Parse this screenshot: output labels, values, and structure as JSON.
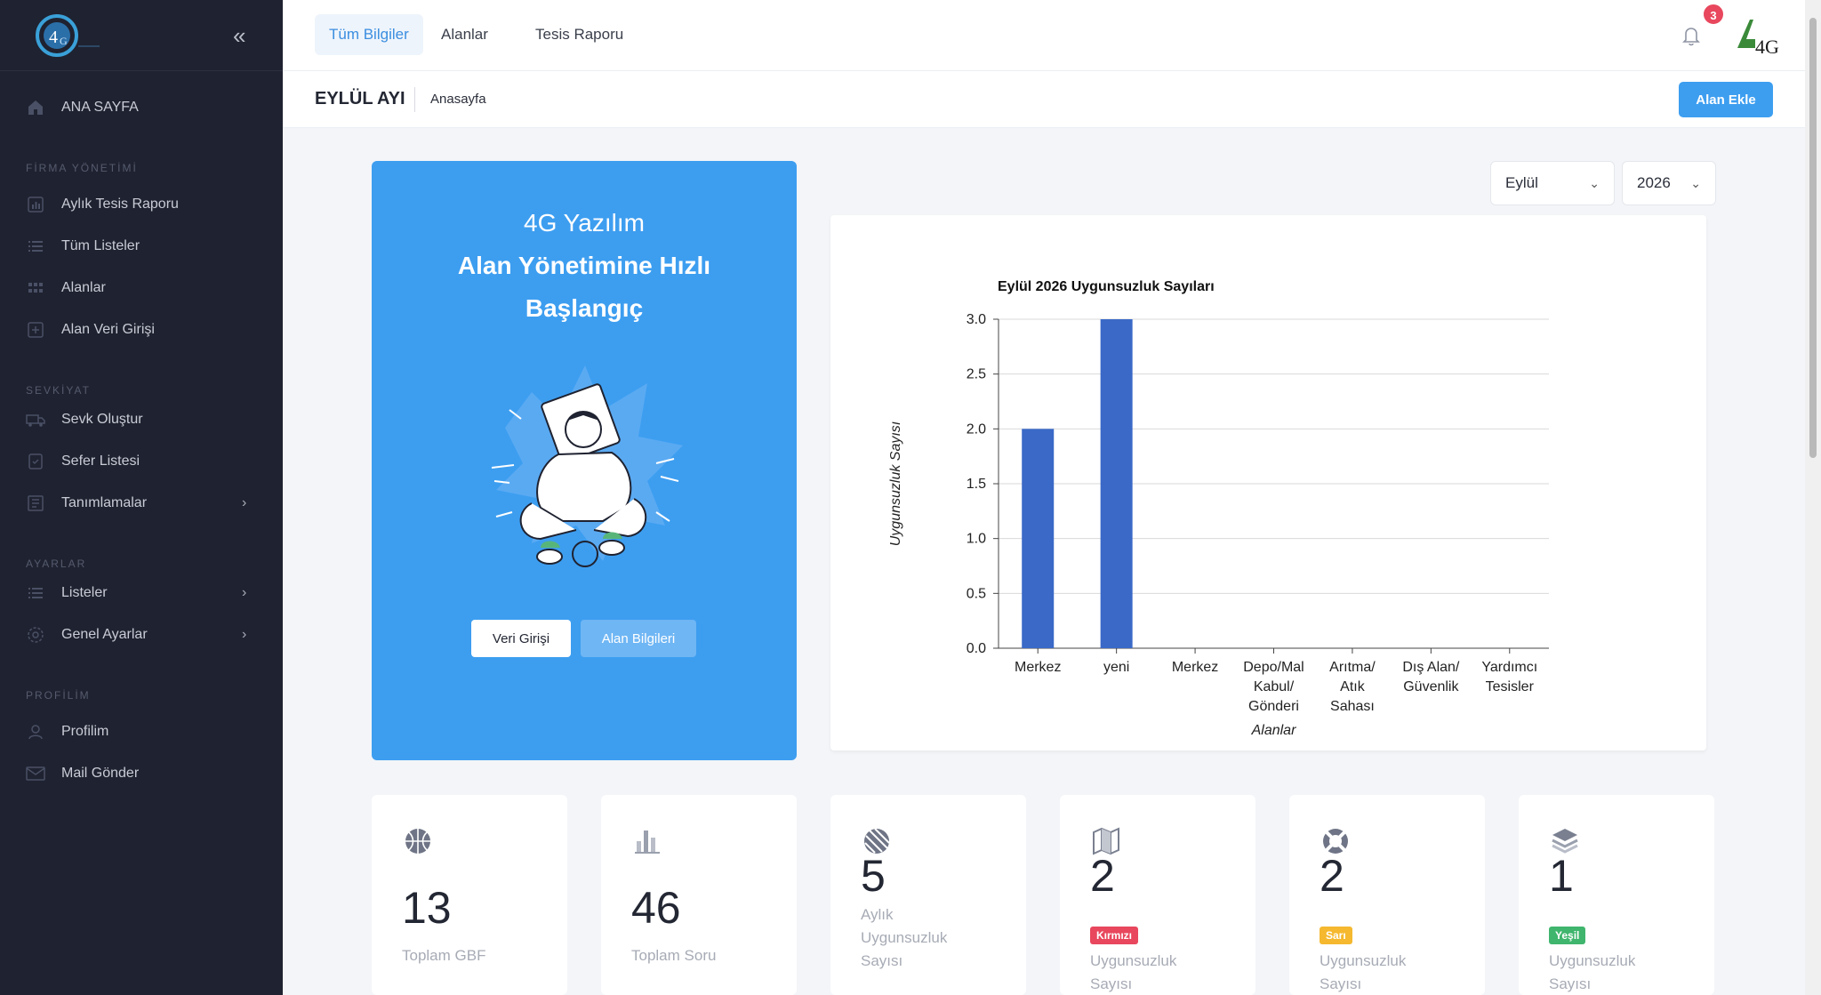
{
  "colors": {
    "sidebar": "#1f2230",
    "accent": "#3d9ef0",
    "bar": "#3a69c7",
    "red": "#e8475d",
    "yellow": "#f5b82e",
    "green": "#3fb56d"
  },
  "sidebar": {
    "home": {
      "label": "ANA SAYFA",
      "icon": "home-icon"
    },
    "sections": [
      {
        "title": "FİRMA YÖNETİMİ"
      },
      {
        "title": "SEVKİYAT"
      },
      {
        "title": "AYARLAR"
      },
      {
        "title": "PROFİLİM"
      }
    ],
    "items": [
      {
        "label": "Aylık Tesis Raporu",
        "icon": "chart-icon"
      },
      {
        "label": "Tüm Listeler",
        "icon": "list-icon"
      },
      {
        "label": "Alanlar",
        "icon": "grid-icon"
      },
      {
        "label": "Alan Veri Girişi",
        "icon": "plus-square-icon"
      },
      {
        "label": "Sevk Oluştur",
        "icon": "truck-icon"
      },
      {
        "label": "Sefer Listesi",
        "icon": "clipboard-check-icon"
      },
      {
        "label": "Tanımlamalar",
        "icon": "document-icon"
      },
      {
        "label": "Listeler",
        "icon": "list-icon"
      },
      {
        "label": "Genel Ayarlar",
        "icon": "gear-icon"
      },
      {
        "label": "Profilim",
        "icon": "user-icon"
      },
      {
        "label": "Mail Gönder",
        "icon": "mail-icon"
      }
    ]
  },
  "header": {
    "tabs": [
      {
        "label": "Tüm Bilgiler"
      },
      {
        "label": "Alanlar"
      },
      {
        "label": "Tesis Raporu"
      }
    ],
    "notification_count": "3",
    "page_title": "EYLÜL AYI",
    "breadcrumb": "Anasayfa",
    "add_button": "Alan Ekle"
  },
  "hero": {
    "line1": "4G Yazılım",
    "line2": "Alan Yönetimine Hızlı",
    "line3": "Başlangıç",
    "btn_data_entry": "Veri Girişi",
    "btn_area_info": "Alan Bilgileri"
  },
  "filters": {
    "month": "Eylül",
    "year": "2026"
  },
  "chart_data": {
    "type": "bar",
    "title": "Eylül 2026 Uygunsuzluk Sayıları",
    "xlabel": "Alanlar",
    "ylabel": "Uygunsuzluk Sayısı",
    "categories": [
      [
        "Merkez"
      ],
      [
        "yeni"
      ],
      [
        "Merkez"
      ],
      [
        "Depo/Mal",
        "Kabul/",
        "Gönderi"
      ],
      [
        "Arıtma/",
        "Atık",
        "Sahası"
      ],
      [
        "Dış Alan/",
        "Güvenlik"
      ],
      [
        "Yardımcı",
        "Tesisler"
      ]
    ],
    "values": [
      2,
      3,
      0,
      0,
      0,
      0,
      0
    ],
    "ylim": [
      0,
      3
    ],
    "yticks": [
      "0.0",
      "0.5",
      "1.0",
      "1.5",
      "2.0",
      "2.5",
      "3.0"
    ],
    "grid": true
  },
  "stats": [
    {
      "value": "13",
      "label": [
        "Toplam GBF"
      ],
      "icon": "basketball-icon"
    },
    {
      "value": "46",
      "label": [
        "Toplam Soru"
      ],
      "icon": "bar-chart-icon"
    },
    {
      "value": "5",
      "label": [
        "Aylık",
        "Uygunsuzluk",
        "Sayısı"
      ],
      "icon": "leaf-ball-icon"
    },
    {
      "value": "2",
      "tag": "Kırmızı",
      "label": [
        "Uygunsuzluk",
        "Sayısı"
      ],
      "icon": "map-icon"
    },
    {
      "value": "2",
      "tag": "Sarı",
      "label": [
        "Uygunsuzluk",
        "Sayısı"
      ],
      "icon": "lifebuoy-icon"
    },
    {
      "value": "1",
      "tag": "Yeşil",
      "label": [
        "Uygunsuzluk",
        "Sayısı"
      ],
      "icon": "layers-icon"
    }
  ]
}
